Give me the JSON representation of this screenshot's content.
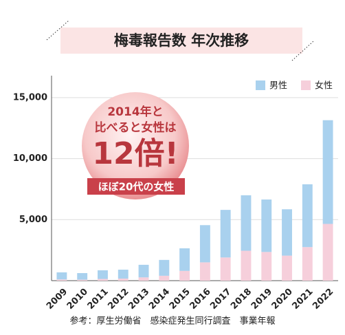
{
  "chart_data": {
    "type": "bar",
    "stacked": true,
    "title": "梅毒報告数 年次推移",
    "annotations": [
      "2014年と",
      "比べると女性は",
      "12倍!",
      "ほぼ20代の女性"
    ],
    "source": "参考：厚生労働省　感染症発生同行調査　事業年報",
    "categories": [
      "2009",
      "2010",
      "2011",
      "2012",
      "2013",
      "2014",
      "2015",
      "2016",
      "2017",
      "2018",
      "2019",
      "2020",
      "2021",
      "2022"
    ],
    "series": [
      {
        "name": "男性",
        "color": "#a9d1ee",
        "values": [
          580,
          540,
          710,
          730,
          1030,
          1300,
          1850,
          3050,
          3900,
          4550,
          4300,
          3800,
          5150,
          8500
        ]
      },
      {
        "name": "女性",
        "color": "#f6cfdb",
        "values": [
          100,
          80,
          140,
          170,
          270,
          400,
          800,
          1500,
          1900,
          2450,
          2350,
          2050,
          2750,
          4650
        ]
      }
    ],
    "ylim": [
      0,
      16800
    ],
    "yticks": [
      {
        "value": 5000,
        "label": "5,000"
      },
      {
        "value": 10000,
        "label": "10,000"
      },
      {
        "value": 15000,
        "label": "15,000"
      }
    ],
    "grid": true,
    "legend": "top-right"
  }
}
